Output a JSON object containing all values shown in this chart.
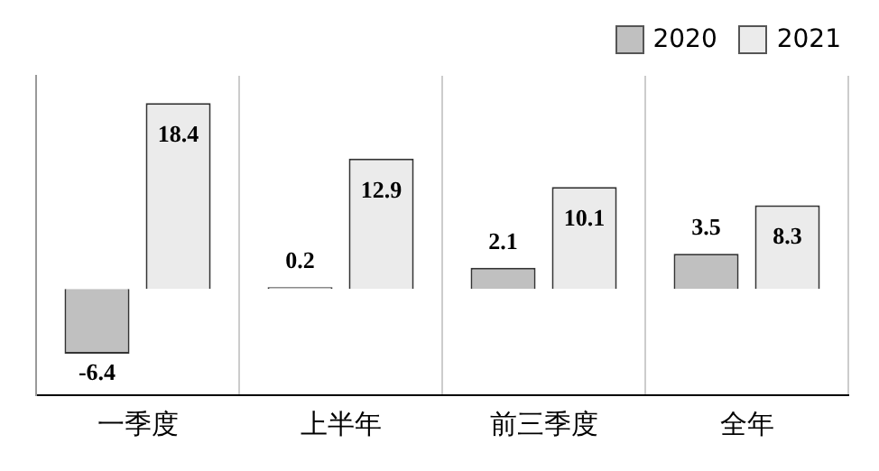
{
  "chart_data": {
    "type": "bar",
    "categories": [
      "一季度",
      "上半年",
      "前三季度",
      "全年"
    ],
    "series": [
      {
        "name": "2020",
        "color": "#c0c0c0",
        "values": [
          -6.4,
          0.2,
          2.1,
          3.5
        ]
      },
      {
        "name": "2021",
        "color": "#ebebeb",
        "values": [
          18.4,
          12.9,
          10.1,
          8.3
        ]
      }
    ],
    "ylim": [
      -10.5,
      21.1
    ],
    "tick_labels": "x",
    "grid": "x",
    "legend": "top right",
    "data_labels": true
  }
}
